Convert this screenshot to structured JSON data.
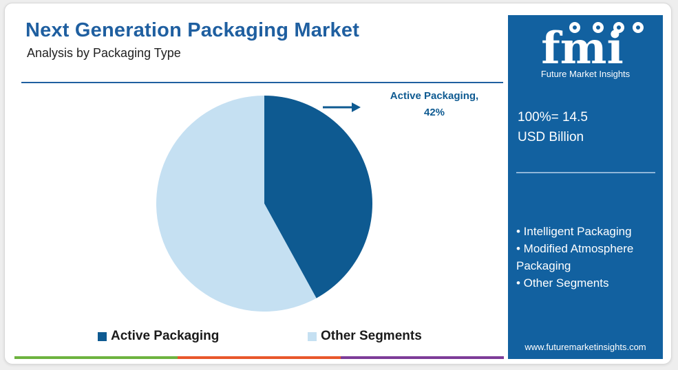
{
  "header": {
    "title": "Next Generation Packaging Market",
    "subtitle": "Analysis by Packaging Type"
  },
  "chart_data": {
    "type": "pie",
    "title": "Next Generation Packaging Market",
    "subtitle": "Analysis by Packaging Type",
    "slices": [
      {
        "label": "Active Packaging",
        "value": 42,
        "color": "#0e5a91"
      },
      {
        "label": "Other Segments",
        "value": 58,
        "color": "#c5e0f2"
      }
    ],
    "annotations": [
      {
        "line1": "Active Packaging,",
        "line2": "42%"
      }
    ],
    "legend": [
      "Active Packaging",
      "Other Segments"
    ],
    "legend_position": "bottom"
  },
  "sidebar": {
    "logo_text": "fmi",
    "brand_name": "Future Market Insights",
    "total_line1": "100%= 14.5",
    "total_line2": "USD Billion",
    "other_segments": [
      "• Intelligent Packaging",
      "• Modified Atmosphere Packaging",
      "• Other Segments"
    ],
    "url": "www.futuremarketinsights.com",
    "bg_color": "#1261a0"
  },
  "footer_bar_colors": [
    "#6db33f",
    "#e8572b",
    "#7d3c98"
  ]
}
